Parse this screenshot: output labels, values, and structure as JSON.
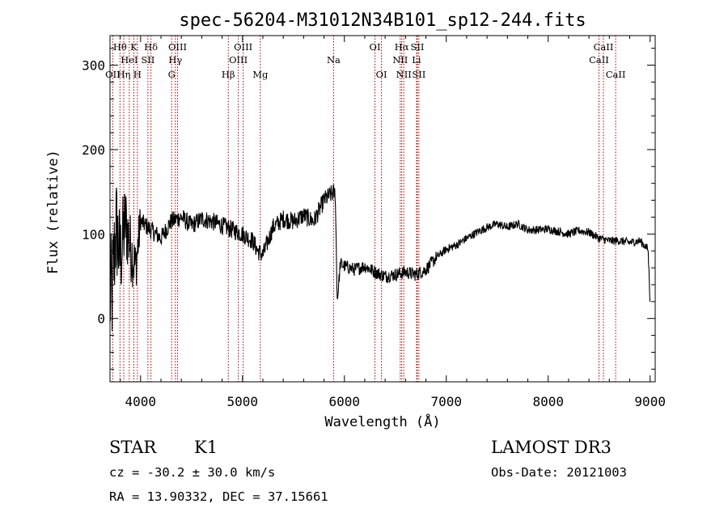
{
  "chart_data": {
    "type": "line",
    "title": "spec-56204-M31012N34B101_sp12-244.fits",
    "xlabel": "Wavelength (Å)",
    "ylabel": "Flux (relative)",
    "xlim": [
      3700,
      9050
    ],
    "ylim": [
      -75,
      335
    ],
    "xticks": [
      4000,
      5000,
      6000,
      7000,
      8000,
      9000
    ],
    "yticks": [
      0,
      100,
      200,
      300
    ],
    "grid": false,
    "series": [
      {
        "name": "spectrum",
        "anchors": [
          [
            3700,
            25
          ],
          [
            3720,
            30
          ],
          [
            3760,
            110
          ],
          [
            3800,
            70
          ],
          [
            3850,
            115
          ],
          [
            3900,
            85
          ],
          [
            3950,
            60
          ],
          [
            4000,
            115
          ],
          [
            4100,
            105
          ],
          [
            4200,
            95
          ],
          [
            4300,
            115
          ],
          [
            4400,
            120
          ],
          [
            4500,
            110
          ],
          [
            4600,
            118
          ],
          [
            4700,
            115
          ],
          [
            4800,
            110
          ],
          [
            4900,
            105
          ],
          [
            5000,
            100
          ],
          [
            5100,
            92
          ],
          [
            5150,
            80
          ],
          [
            5200,
            75
          ],
          [
            5300,
            108
          ],
          [
            5400,
            118
          ],
          [
            5500,
            115
          ],
          [
            5600,
            122
          ],
          [
            5700,
            115
          ],
          [
            5800,
            140
          ],
          [
            5880,
            148
          ],
          [
            5910,
            150
          ],
          [
            5930,
            20
          ],
          [
            5960,
            65
          ],
          [
            6000,
            62
          ],
          [
            6100,
            58
          ],
          [
            6200,
            62
          ],
          [
            6300,
            55
          ],
          [
            6400,
            50
          ],
          [
            6500,
            52
          ],
          [
            6600,
            55
          ],
          [
            6700,
            52
          ],
          [
            6800,
            58
          ],
          [
            6900,
            72
          ],
          [
            7000,
            82
          ],
          [
            7100,
            87
          ],
          [
            7200,
            95
          ],
          [
            7300,
            102
          ],
          [
            7400,
            108
          ],
          [
            7500,
            112
          ],
          [
            7600,
            108
          ],
          [
            7700,
            112
          ],
          [
            7800,
            105
          ],
          [
            7900,
            105
          ],
          [
            8000,
            106
          ],
          [
            8100,
            103
          ],
          [
            8200,
            100
          ],
          [
            8300,
            104
          ],
          [
            8400,
            102
          ],
          [
            8500,
            95
          ],
          [
            8600,
            92
          ],
          [
            8700,
            92
          ],
          [
            8800,
            90
          ],
          [
            8900,
            92
          ],
          [
            8980,
            82
          ],
          [
            9000,
            20
          ]
        ]
      }
    ],
    "spectral_lines": [
      {
        "label": "OII",
        "wavelength": 3727,
        "row": 3
      },
      {
        "label": "Hθ",
        "wavelength": 3798,
        "row": 1
      },
      {
        "label": "Hη",
        "wavelength": 3835,
        "row": 3
      },
      {
        "label": "HeI",
        "wavelength": 3889,
        "row": 2
      },
      {
        "label": "K",
        "wavelength": 3934,
        "row": 1
      },
      {
        "label": "H",
        "wavelength": 3969,
        "row": 3
      },
      {
        "label": "SII",
        "wavelength": 4072,
        "row": 2
      },
      {
        "label": "Hδ",
        "wavelength": 4102,
        "row": 1
      },
      {
        "label": "G",
        "wavelength": 4305,
        "row": 3
      },
      {
        "label": "Hγ",
        "wavelength": 4341,
        "row": 2
      },
      {
        "label": "OIII",
        "wavelength": 4363,
        "row": 1
      },
      {
        "label": "Hβ",
        "wavelength": 4861,
        "row": 3
      },
      {
        "label": "OIII",
        "wavelength": 4959,
        "row": 2
      },
      {
        "label": "OIII",
        "wavelength": 5007,
        "row": 1
      },
      {
        "label": "Mg",
        "wavelength": 5175,
        "row": 3
      },
      {
        "label": "Na",
        "wavelength": 5894,
        "row": 2
      },
      {
        "label": "OI",
        "wavelength": 6300,
        "row": 1
      },
      {
        "label": "OI",
        "wavelength": 6364,
        "row": 3
      },
      {
        "label": "NII",
        "wavelength": 6548,
        "row": 2
      },
      {
        "label": "Hα",
        "wavelength": 6563,
        "row": 1
      },
      {
        "label": "NII",
        "wavelength": 6583,
        "row": 3
      },
      {
        "label": "Li",
        "wavelength": 6708,
        "row": 2
      },
      {
        "label": "SII",
        "wavelength": 6716,
        "row": 1
      },
      {
        "label": "SII",
        "wavelength": 6731,
        "row": 3
      },
      {
        "label": "CaII",
        "wavelength": 8498,
        "row": 2
      },
      {
        "label": "CaII",
        "wavelength": 8542,
        "row": 1
      },
      {
        "label": "CaII",
        "wavelength": 8662,
        "row": 3
      }
    ]
  },
  "info": {
    "class": "STAR",
    "subclass": "K1",
    "survey": "LAMOST DR3",
    "redshift": "cz = -30.2 ± 30.0 km/s",
    "obs_date": "Obs-Date: 20121003",
    "coords": "RA =  13.90332, DEC =  37.15661"
  },
  "colors": {
    "line_marker": "#a00000",
    "spectrum": "#000000",
    "axis": "#000000"
  }
}
